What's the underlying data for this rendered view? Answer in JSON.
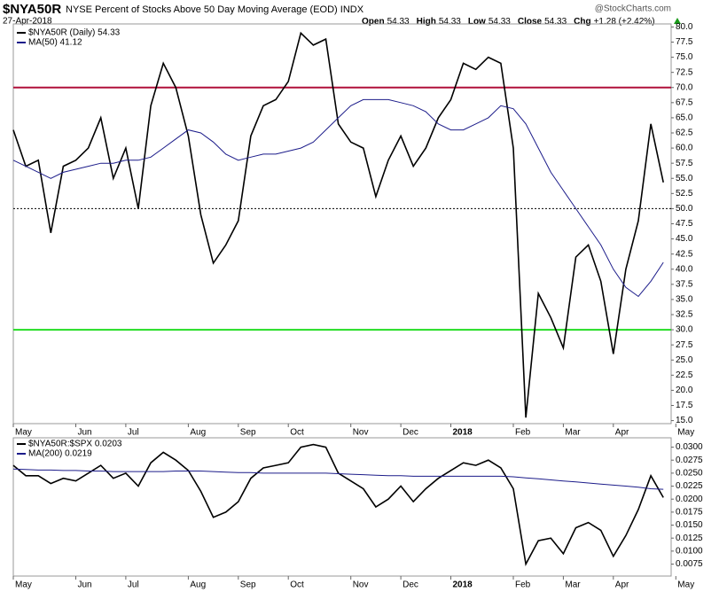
{
  "chart_data": [
    {
      "type": "line",
      "title": "$NYA50R",
      "subtitle": "NYSE Percent of Stocks Above 50 Day Moving Average (EOD)  INDX",
      "date": "27-Apr-2018",
      "watermark": "@StockCharts.com",
      "quote": [
        {
          "label": "Open",
          "value": 54.33
        },
        {
          "label": "High",
          "value": 54.33
        },
        {
          "label": "Low",
          "value": 54.33
        },
        {
          "label": "Close",
          "value": 54.33
        },
        {
          "label": "Chg",
          "value": "+1.28 (+2.42%)"
        }
      ],
      "categories": [
        "May",
        null,
        null,
        null,
        null,
        "Jun",
        null,
        null,
        null,
        "Jul",
        null,
        null,
        null,
        null,
        "Aug",
        null,
        null,
        null,
        "Sep",
        null,
        null,
        null,
        "Oct",
        null,
        null,
        null,
        null,
        "Nov",
        null,
        null,
        null,
        "Dec",
        null,
        null,
        null,
        "2018",
        null,
        null,
        null,
        null,
        "Feb",
        null,
        null,
        null,
        "Mar",
        null,
        null,
        null,
        "Apr",
        null,
        null,
        null,
        null,
        "May"
      ],
      "series": [
        {
          "name": "$NYA50R (Daily) 54.33",
          "color": "#000000",
          "values": [
            63,
            57,
            58,
            46,
            57,
            58,
            60,
            65,
            55,
            60,
            50,
            67,
            74,
            70,
            62,
            49,
            41,
            44,
            48,
            62,
            67,
            68,
            71,
            79,
            77,
            78,
            64,
            61,
            60,
            52,
            58,
            62,
            57,
            60,
            65,
            68,
            74,
            73,
            75,
            74,
            60,
            15.5,
            36,
            32,
            27,
            42,
            44,
            38,
            26,
            40,
            48,
            64,
            54.33,
            null
          ]
        },
        {
          "name": "MA(50) 41.12",
          "color": "#1c1c8a",
          "values": [
            58,
            57,
            56,
            55,
            56,
            56.5,
            57,
            57.5,
            57.5,
            58,
            58,
            58.5,
            60,
            61.5,
            63,
            62.5,
            61,
            59,
            58,
            58.5,
            59,
            59,
            59.5,
            60,
            61,
            63,
            65,
            67,
            68,
            68,
            68,
            67.5,
            67,
            66,
            64,
            63,
            63,
            64,
            65,
            67,
            66.5,
            64,
            60,
            56,
            53,
            50,
            47,
            44,
            40,
            37,
            35.5,
            38,
            41.12,
            null
          ]
        }
      ],
      "reference_lines": [
        {
          "value": 70,
          "color": "#b0103a",
          "style": "solid"
        },
        {
          "value": 30,
          "color": "#22dd22",
          "style": "solid"
        },
        {
          "value": 50,
          "color": "#000000",
          "style": "dotted"
        }
      ],
      "ylim": [
        14.5,
        80.5
      ],
      "yticks": [
        {
          "value": 15,
          "label": "15.0"
        },
        {
          "value": 17.5,
          "label": "17.5"
        },
        {
          "value": 20,
          "label": "20.0"
        },
        {
          "value": 22.5,
          "label": "22.5"
        },
        {
          "value": 25,
          "label": "25.0"
        },
        {
          "value": 27.5,
          "label": "27.5"
        },
        {
          "value": 30,
          "label": "30.0"
        },
        {
          "value": 32.5,
          "label": "32.5"
        },
        {
          "value": 35,
          "label": "35.0"
        },
        {
          "value": 37.5,
          "label": "37.5"
        },
        {
          "value": 40,
          "label": "40.0"
        },
        {
          "value": 42.5,
          "label": "42.5"
        },
        {
          "value": 45,
          "label": "45.0"
        },
        {
          "value": 47.5,
          "label": "47.5"
        },
        {
          "value": 50,
          "label": "50.0"
        },
        {
          "value": 52.5,
          "label": "52.5"
        },
        {
          "value": 55,
          "label": "55.0"
        },
        {
          "value": 57.5,
          "label": "57.5"
        },
        {
          "value": 60,
          "label": "60.0"
        },
        {
          "value": 62.5,
          "label": "62.5"
        },
        {
          "value": 65,
          "label": "65.0"
        },
        {
          "value": 67.5,
          "label": "67.5"
        },
        {
          "value": 70,
          "label": "70.0"
        },
        {
          "value": 72.5,
          "label": "72.5"
        },
        {
          "value": 75,
          "label": "75.0"
        },
        {
          "value": 77.5,
          "label": "77.5"
        },
        {
          "value": 80,
          "label": "80.0"
        }
      ]
    },
    {
      "type": "line",
      "categories": [
        "May",
        null,
        null,
        null,
        null,
        "Jun",
        null,
        null,
        null,
        "Jul",
        null,
        null,
        null,
        null,
        "Aug",
        null,
        null,
        null,
        "Sep",
        null,
        null,
        null,
        "Oct",
        null,
        null,
        null,
        null,
        "Nov",
        null,
        null,
        null,
        "Dec",
        null,
        null,
        null,
        "2018",
        null,
        null,
        null,
        null,
        "Feb",
        null,
        null,
        null,
        "Mar",
        null,
        null,
        null,
        "Apr",
        null,
        null,
        null,
        null,
        "May"
      ],
      "series": [
        {
          "name": "$NYA50R:$SPX 0.0203",
          "color": "#000000",
          "values": [
            0.0265,
            0.0245,
            0.0245,
            0.023,
            0.024,
            0.0235,
            0.025,
            0.0265,
            0.024,
            0.025,
            0.0225,
            0.027,
            0.029,
            0.0275,
            0.0255,
            0.0215,
            0.0165,
            0.0175,
            0.0195,
            0.024,
            0.026,
            0.0265,
            0.027,
            0.03,
            0.0305,
            0.03,
            0.025,
            0.0235,
            0.022,
            0.0185,
            0.02,
            0.0225,
            0.0195,
            0.022,
            0.024,
            0.0255,
            0.027,
            0.0265,
            0.0275,
            0.026,
            0.022,
            0.0075,
            0.012,
            0.0125,
            0.0095,
            0.0145,
            0.0155,
            0.014,
            0.009,
            0.013,
            0.018,
            0.0245,
            0.0203,
            null
          ]
        },
        {
          "name": "MA(200) 0.0219",
          "color": "#1c1c8a",
          "values": [
            0.0258,
            0.0257,
            0.0256,
            0.0256,
            0.0255,
            0.0255,
            0.0254,
            0.0254,
            0.0253,
            0.0253,
            0.0253,
            0.0253,
            0.0253,
            0.0254,
            0.0254,
            0.0254,
            0.0253,
            0.0252,
            0.0251,
            0.0251,
            0.025,
            0.025,
            0.025,
            0.025,
            0.025,
            0.025,
            0.0249,
            0.0248,
            0.0247,
            0.0246,
            0.0245,
            0.0245,
            0.0244,
            0.0244,
            0.0244,
            0.0244,
            0.0244,
            0.0244,
            0.0244,
            0.0244,
            0.0243,
            0.0241,
            0.0239,
            0.0237,
            0.0235,
            0.0233,
            0.0231,
            0.0229,
            0.0227,
            0.0225,
            0.0223,
            0.022,
            0.0219,
            null
          ]
        }
      ],
      "ylim": [
        0.0052,
        0.0318
      ],
      "yticks": [
        {
          "value": 0.0075,
          "label": "0.0075"
        },
        {
          "value": 0.01,
          "label": "0.0100"
        },
        {
          "value": 0.0125,
          "label": "0.0125"
        },
        {
          "value": 0.015,
          "label": "0.0150"
        },
        {
          "value": 0.0175,
          "label": "0.0175"
        },
        {
          "value": 0.02,
          "label": "0.0200"
        },
        {
          "value": 0.0225,
          "label": "0.0225"
        },
        {
          "value": 0.025,
          "label": "0.0250"
        },
        {
          "value": 0.0275,
          "label": "0.0275"
        },
        {
          "value": 0.03,
          "label": "0.0300"
        }
      ]
    }
  ]
}
